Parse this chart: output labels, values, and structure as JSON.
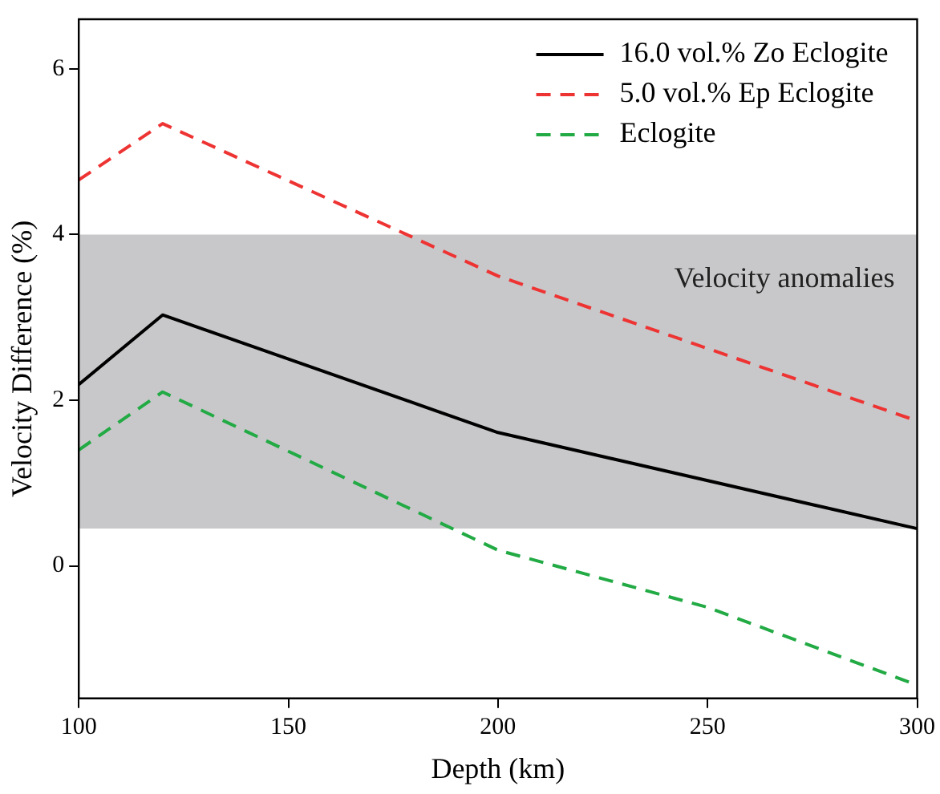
{
  "chart_data": {
    "type": "line",
    "xlabel": "Depth (km)",
    "ylabel": "Velocity Difference (%)",
    "xlim": [
      100,
      300
    ],
    "xticks": [
      100,
      150,
      200,
      250,
      300
    ],
    "ylim": [
      -1.6,
      6.6
    ],
    "yticks": [
      0,
      2,
      4,
      6
    ],
    "grid": false,
    "legend": "top right",
    "marker": "none",
    "bands": [
      {
        "axis": "y",
        "from": 0.45,
        "to": 4,
        "label": "Velocity anomalies",
        "color": "#c8c8ca"
      }
    ],
    "series": [
      {
        "name": "16.0 vol.% Zo Eclogite",
        "color": "#000000",
        "line_style": "solid",
        "x": [
          100,
          120,
          200,
          300
        ],
        "values": [
          2.19,
          3.03,
          1.61,
          0.45
        ]
      },
      {
        "name": "5.0 vol.% Ep Eclogite",
        "color": "#ee3333",
        "line_style": "dashed",
        "x": [
          100,
          120,
          200,
          300
        ],
        "values": [
          4.66,
          5.34,
          3.5,
          1.75
        ]
      },
      {
        "name": "Eclogite",
        "color": "#22aa44",
        "line_style": "dashed",
        "x": [
          100,
          120,
          200,
          250,
          300
        ],
        "values": [
          1.4,
          2.1,
          0.19,
          -0.5,
          -1.44
        ]
      }
    ]
  }
}
